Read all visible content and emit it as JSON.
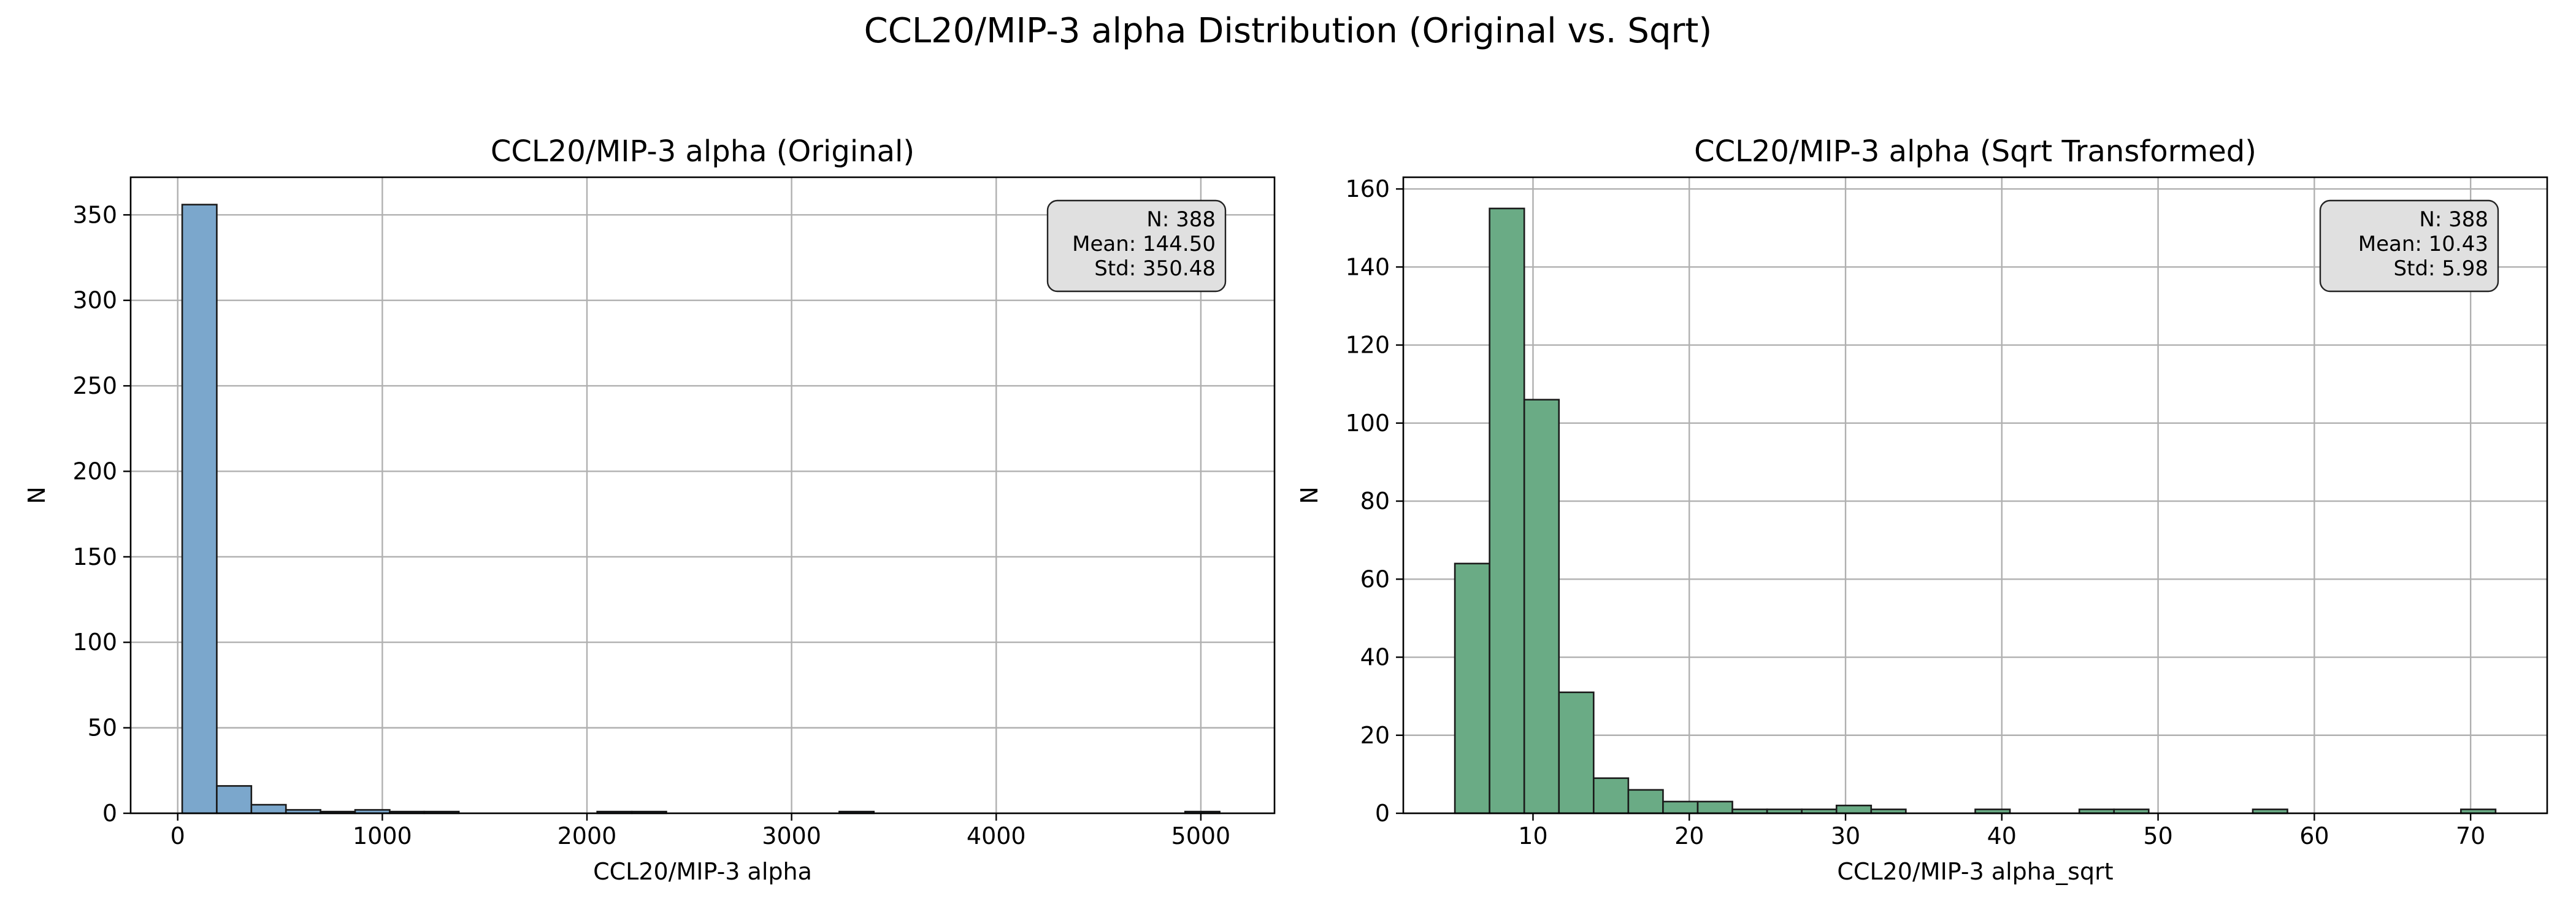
{
  "figure": {
    "title": "CCL20/MIP-3 alpha Distribution (Original vs. Sqrt)"
  },
  "chart_data": [
    {
      "type": "bar",
      "title": "CCL20/MIP-3 alpha (Original)",
      "xlabel": "CCL20/MIP-3 alpha",
      "ylabel": "N",
      "xlim": [
        -230,
        5360
      ],
      "ylim": [
        0,
        372
      ],
      "xticks": [
        0,
        1000,
        2000,
        3000,
        4000,
        5000
      ],
      "yticks": [
        0,
        50,
        100,
        150,
        200,
        250,
        300,
        350
      ],
      "grid": true,
      "bar_color": "#7BA7CC",
      "bin_edges": [
        22,
        191,
        360,
        529,
        698,
        867,
        1036,
        1205,
        1374,
        1543,
        1712,
        1881,
        2050,
        2219,
        2388,
        2557,
        2726,
        2895,
        3064,
        3233,
        3402,
        3571,
        3740,
        3909,
        4078,
        4247,
        4416,
        4585,
        4754,
        4923,
        5092
      ],
      "counts": [
        356,
        16,
        5,
        2,
        1,
        2,
        1,
        1,
        0,
        0,
        0,
        0,
        1,
        1,
        0,
        0,
        0,
        0,
        0,
        1,
        0,
        0,
        0,
        0,
        0,
        0,
        0,
        0,
        0,
        1
      ],
      "stats_box": [
        "N: 388",
        "Mean: 144.50",
        "Std: 350.48"
      ]
    },
    {
      "type": "bar",
      "title": "CCL20/MIP-3 alpha (Sqrt Transformed)",
      "xlabel": "CCL20/MIP-3 alpha_sqrt",
      "ylabel": "N",
      "xlim": [
        1.7,
        74.9
      ],
      "ylim": [
        0,
        163
      ],
      "xticks": [
        10,
        20,
        30,
        40,
        50,
        60,
        70
      ],
      "yticks": [
        0,
        20,
        40,
        60,
        80,
        100,
        120,
        140,
        160
      ],
      "grid": true,
      "bar_color": "#6AAB85",
      "bin_edges": [
        5.0,
        7.22,
        9.44,
        11.66,
        13.88,
        16.1,
        18.32,
        20.54,
        22.76,
        24.98,
        27.2,
        29.42,
        31.64,
        33.86,
        36.08,
        38.3,
        40.52,
        42.74,
        44.96,
        47.18,
        49.4,
        51.62,
        53.84,
        56.06,
        58.28,
        60.5,
        62.72,
        64.94,
        67.16,
        69.38,
        71.6
      ],
      "counts": [
        64,
        155,
        106,
        31,
        9,
        6,
        3,
        3,
        1,
        1,
        1,
        2,
        1,
        0,
        0,
        1,
        0,
        0,
        1,
        1,
        0,
        0,
        0,
        1,
        0,
        0,
        0,
        0,
        0,
        1
      ],
      "stats_box": [
        "N: 388",
        "Mean: 10.43",
        "Std: 5.98"
      ]
    }
  ]
}
